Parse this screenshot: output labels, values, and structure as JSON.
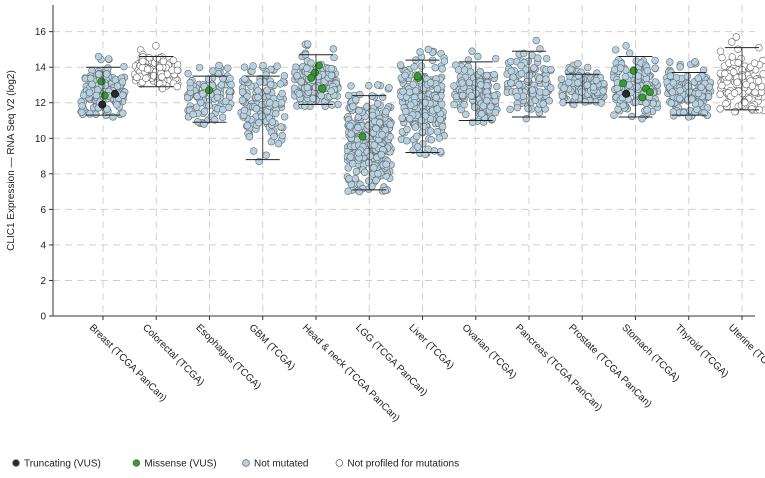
{
  "chart_data": {
    "type": "scatter",
    "ylabel": "CLIC1 Expression — RNA Seq V2 (log2)",
    "ylim": [
      0,
      17.5
    ],
    "yticks": [
      0,
      2,
      4,
      6,
      8,
      10,
      12,
      14,
      16
    ],
    "grid": true,
    "categories": [
      {
        "label": "Breast (TCGA PanCan)",
        "min": 11.2,
        "max": 14.6,
        "center": 12.7,
        "n": 140,
        "missense": [
          13.2,
          12.4
        ],
        "truncating": [
          12.5,
          11.9
        ],
        "profiled": true
      },
      {
        "label": "Colorectal (TCGA)",
        "min": 12.8,
        "max": 15.2,
        "center": 13.8,
        "n": 110,
        "missense": [],
        "truncating": [],
        "profiled": false
      },
      {
        "label": "Esophagus (TCGA)",
        "min": 10.8,
        "max": 14.1,
        "center": 12.5,
        "n": 110,
        "missense": [
          12.7
        ],
        "truncating": [],
        "profiled": true
      },
      {
        "label": "GBM (TCGA)",
        "min": 8.7,
        "max": 14.1,
        "center": 12.0,
        "n": 120,
        "missense": [],
        "truncating": [],
        "profiled": true
      },
      {
        "label": "Head & neck (TCGA PanCan)",
        "min": 11.8,
        "max": 15.3,
        "center": 13.1,
        "n": 150,
        "missense": [
          14.1,
          13.7,
          13.4,
          12.8
        ],
        "truncating": [],
        "profiled": true
      },
      {
        "label": "LGG (TCGA PanCan)",
        "min": 7.0,
        "max": 13.0,
        "center": 9.8,
        "n": 330,
        "missense": [
          10.1
        ],
        "truncating": [],
        "profiled": true
      },
      {
        "label": "Liver (TCGA)",
        "min": 9.1,
        "max": 15.0,
        "center": 12.0,
        "n": 240,
        "missense": [
          13.4,
          13.5
        ],
        "truncating": [],
        "profiled": true
      },
      {
        "label": "Ovarian (TCGA)",
        "min": 10.9,
        "max": 14.9,
        "center": 12.6,
        "n": 130,
        "missense": [],
        "truncating": [],
        "profiled": true
      },
      {
        "label": "Pancreas (TCGA PanCan)",
        "min": 11.1,
        "max": 15.5,
        "center": 13.2,
        "n": 110,
        "missense": [],
        "truncating": [],
        "profiled": true
      },
      {
        "label": "Prostate (TCGA PanCan)",
        "min": 11.9,
        "max": 14.2,
        "center": 12.9,
        "n": 150,
        "missense": [],
        "truncating": [],
        "profiled": true
      },
      {
        "label": "Stomach (TCGA)",
        "min": 11.1,
        "max": 15.2,
        "center": 12.9,
        "n": 150,
        "missense": [
          13.8,
          13.1,
          12.8,
          12.6,
          12.3
        ],
        "truncating": [
          12.5
        ],
        "profiled": true
      },
      {
        "label": "Thyroid (TCGA)",
        "min": 11.2,
        "max": 14.3,
        "center": 12.6,
        "n": 150,
        "missense": [],
        "truncating": [],
        "profiled": true
      },
      {
        "label": "Uterine (TCGA)",
        "min": 11.5,
        "max": 15.7,
        "center": 13.0,
        "n": 120,
        "missense": [],
        "truncating": [],
        "profiled": false
      }
    ],
    "legend": [
      {
        "label": "Truncating (VUS)",
        "color": "#2b2b2b"
      },
      {
        "label": "Missense (VUS)",
        "color": "#3a9a2f"
      },
      {
        "label": "Not mutated",
        "color": "#b5d2e3"
      },
      {
        "label": "Not profiled for mutations",
        "color": "#ffffff"
      }
    ],
    "colors": {
      "not_mutated": "#b5d2e3",
      "not_profiled": "#ffffff",
      "missense": "#3a9a2f",
      "truncating": "#2b2b2b",
      "point_stroke": "#6b6b6b",
      "grid": "#d0d0d0",
      "box": "#222222"
    }
  }
}
